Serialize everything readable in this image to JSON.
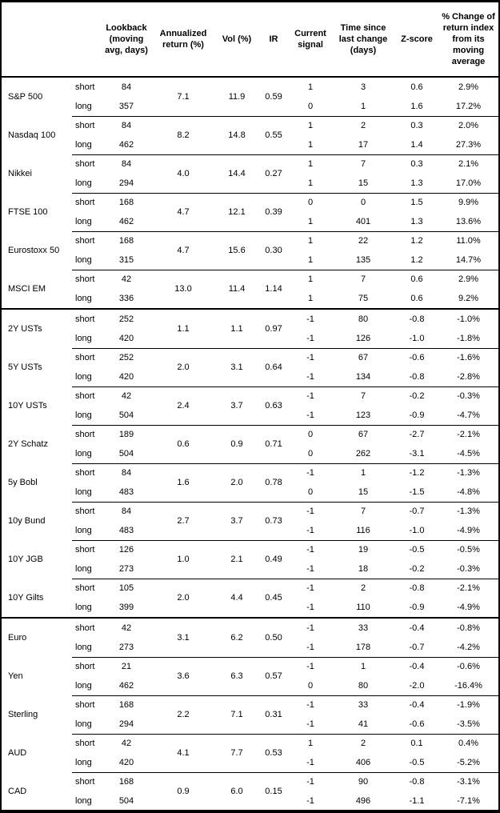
{
  "header": {
    "asset": "",
    "leg": "",
    "lookback": "Lookback (moving avg, days)",
    "ann_return": "Annualized return (%)",
    "vol": "Vol (%)",
    "ir": "IR",
    "signal": "Current signal",
    "time": "Time since last change (days)",
    "zscore": "Z-score",
    "pct_change": "% Change of return index from its moving average"
  },
  "colors": {
    "text": "#000000",
    "background": "#ffffff",
    "rule": "#000000"
  },
  "sections": [
    {
      "id": "equities",
      "assets": [
        {
          "name": "S&P 500",
          "ann_return": "7.1",
          "vol": "11.9",
          "ir": "0.59",
          "rows": [
            {
              "label": "short",
              "lookback": "84",
              "signal": "1",
              "time": "3",
              "zscore": "0.6",
              "pct_change": "2.9%"
            },
            {
              "label": "long",
              "lookback": "357",
              "signal": "0",
              "time": "1",
              "zscore": "1.6",
              "pct_change": "17.2%"
            }
          ]
        },
        {
          "name": "Nasdaq 100",
          "ann_return": "8.2",
          "vol": "14.8",
          "ir": "0.55",
          "rows": [
            {
              "label": "short",
              "lookback": "84",
              "signal": "1",
              "time": "2",
              "zscore": "0.3",
              "pct_change": "2.0%"
            },
            {
              "label": "long",
              "lookback": "462",
              "signal": "1",
              "time": "17",
              "zscore": "1.4",
              "pct_change": "27.3%"
            }
          ]
        },
        {
          "name": "Nikkei",
          "ann_return": "4.0",
          "vol": "14.4",
          "ir": "0.27",
          "rows": [
            {
              "label": "short",
              "lookback": "84",
              "signal": "1",
              "time": "7",
              "zscore": "0.3",
              "pct_change": "2.1%"
            },
            {
              "label": "long",
              "lookback": "294",
              "signal": "1",
              "time": "15",
              "zscore": "1.3",
              "pct_change": "17.0%"
            }
          ]
        },
        {
          "name": "FTSE 100",
          "ann_return": "4.7",
          "vol": "12.1",
          "ir": "0.39",
          "rows": [
            {
              "label": "short",
              "lookback": "168",
              "signal": "0",
              "time": "0",
              "zscore": "1.5",
              "pct_change": "9.9%"
            },
            {
              "label": "long",
              "lookback": "462",
              "signal": "1",
              "time": "401",
              "zscore": "1.3",
              "pct_change": "13.6%"
            }
          ]
        },
        {
          "name": "Eurostoxx 50",
          "ann_return": "4.7",
          "vol": "15.6",
          "ir": "0.30",
          "rows": [
            {
              "label": "short",
              "lookback": "168",
              "signal": "1",
              "time": "22",
              "zscore": "1.2",
              "pct_change": "11.0%"
            },
            {
              "label": "long",
              "lookback": "315",
              "signal": "1",
              "time": "135",
              "zscore": "1.2",
              "pct_change": "14.7%"
            }
          ]
        },
        {
          "name": "MSCI EM",
          "ann_return": "13.0",
          "vol": "11.4",
          "ir": "1.14",
          "rows": [
            {
              "label": "short",
              "lookback": "42",
              "signal": "1",
              "time": "7",
              "zscore": "0.6",
              "pct_change": "2.9%"
            },
            {
              "label": "long",
              "lookback": "336",
              "signal": "1",
              "time": "75",
              "zscore": "0.6",
              "pct_change": "9.2%"
            }
          ]
        }
      ]
    },
    {
      "id": "bonds",
      "assets": [
        {
          "name": "2Y USTs",
          "ann_return": "1.1",
          "vol": "1.1",
          "ir": "0.97",
          "rows": [
            {
              "label": "short",
              "lookback": "252",
              "signal": "-1",
              "time": "80",
              "zscore": "-0.8",
              "pct_change": "-1.0%"
            },
            {
              "label": "long",
              "lookback": "420",
              "signal": "-1",
              "time": "126",
              "zscore": "-1.0",
              "pct_change": "-1.8%"
            }
          ]
        },
        {
          "name": "5Y USTs",
          "ann_return": "2.0",
          "vol": "3.1",
          "ir": "0.64",
          "rows": [
            {
              "label": "short",
              "lookback": "252",
              "signal": "-1",
              "time": "67",
              "zscore": "-0.6",
              "pct_change": "-1.6%"
            },
            {
              "label": "long",
              "lookback": "420",
              "signal": "-1",
              "time": "134",
              "zscore": "-0.8",
              "pct_change": "-2.8%"
            }
          ]
        },
        {
          "name": "10Y USTs",
          "ann_return": "2.4",
          "vol": "3.7",
          "ir": "0.63",
          "rows": [
            {
              "label": "short",
              "lookback": "42",
              "signal": "-1",
              "time": "7",
              "zscore": "-0.2",
              "pct_change": "-0.3%"
            },
            {
              "label": "long",
              "lookback": "504",
              "signal": "-1",
              "time": "123",
              "zscore": "-0.9",
              "pct_change": "-4.7%"
            }
          ]
        },
        {
          "name": "2Y Schatz",
          "ann_return": "0.6",
          "vol": "0.9",
          "ir": "0.71",
          "rows": [
            {
              "label": "short",
              "lookback": "189",
              "signal": "0",
              "time": "67",
              "zscore": "-2.7",
              "pct_change": "-2.1%"
            },
            {
              "label": "long",
              "lookback": "504",
              "signal": "0",
              "time": "262",
              "zscore": "-3.1",
              "pct_change": "-4.5%"
            }
          ]
        },
        {
          "name": "5y Bobl",
          "ann_return": "1.6",
          "vol": "2.0",
          "ir": "0.78",
          "rows": [
            {
              "label": "short",
              "lookback": "84",
              "signal": "-1",
              "time": "1",
              "zscore": "-1.2",
              "pct_change": "-1.3%"
            },
            {
              "label": "long",
              "lookback": "483",
              "signal": "0",
              "time": "15",
              "zscore": "-1.5",
              "pct_change": "-4.8%"
            }
          ]
        },
        {
          "name": "10y Bund",
          "ann_return": "2.7",
          "vol": "3.7",
          "ir": "0.73",
          "rows": [
            {
              "label": "short",
              "lookback": "84",
              "signal": "-1",
              "time": "7",
              "zscore": "-0.7",
              "pct_change": "-1.3%"
            },
            {
              "label": "long",
              "lookback": "483",
              "signal": "-1",
              "time": "116",
              "zscore": "-1.0",
              "pct_change": "-4.9%"
            }
          ]
        },
        {
          "name": "10Y JGB",
          "ann_return": "1.0",
          "vol": "2.1",
          "ir": "0.49",
          "rows": [
            {
              "label": "short",
              "lookback": "126",
              "signal": "-1",
              "time": "19",
              "zscore": "-0.5",
              "pct_change": "-0.5%"
            },
            {
              "label": "long",
              "lookback": "273",
              "signal": "-1",
              "time": "18",
              "zscore": "-0.2",
              "pct_change": "-0.3%"
            }
          ]
        },
        {
          "name": "10Y Gilts",
          "ann_return": "2.0",
          "vol": "4.4",
          "ir": "0.45",
          "rows": [
            {
              "label": "short",
              "lookback": "105",
              "signal": "-1",
              "time": "2",
              "zscore": "-0.8",
              "pct_change": "-2.1%"
            },
            {
              "label": "long",
              "lookback": "399",
              "signal": "-1",
              "time": "110",
              "zscore": "-0.9",
              "pct_change": "-4.9%"
            }
          ]
        }
      ]
    },
    {
      "id": "fx",
      "assets": [
        {
          "name": "Euro",
          "ann_return": "3.1",
          "vol": "6.2",
          "ir": "0.50",
          "rows": [
            {
              "label": "short",
              "lookback": "42",
              "signal": "-1",
              "time": "33",
              "zscore": "-0.4",
              "pct_change": "-0.8%"
            },
            {
              "label": "long",
              "lookback": "273",
              "signal": "-1",
              "time": "178",
              "zscore": "-0.7",
              "pct_change": "-4.2%"
            }
          ]
        },
        {
          "name": "Yen",
          "ann_return": "3.6",
          "vol": "6.3",
          "ir": "0.57",
          "rows": [
            {
              "label": "short",
              "lookback": "21",
              "signal": "-1",
              "time": "1",
              "zscore": "-0.4",
              "pct_change": "-0.6%"
            },
            {
              "label": "long",
              "lookback": "462",
              "signal": "0",
              "time": "80",
              "zscore": "-2.0",
              "pct_change": "-16.4%"
            }
          ]
        },
        {
          "name": "Sterling",
          "ann_return": "2.2",
          "vol": "7.1",
          "ir": "0.31",
          "rows": [
            {
              "label": "short",
              "lookback": "168",
              "signal": "-1",
              "time": "33",
              "zscore": "-0.4",
              "pct_change": "-1.9%"
            },
            {
              "label": "long",
              "lookback": "294",
              "signal": "-1",
              "time": "41",
              "zscore": "-0.6",
              "pct_change": "-3.5%"
            }
          ]
        },
        {
          "name": "AUD",
          "ann_return": "4.1",
          "vol": "7.7",
          "ir": "0.53",
          "rows": [
            {
              "label": "short",
              "lookback": "42",
              "signal": "1",
              "time": "2",
              "zscore": "0.1",
              "pct_change": "0.4%"
            },
            {
              "label": "long",
              "lookback": "420",
              "signal": "-1",
              "time": "406",
              "zscore": "-0.5",
              "pct_change": "-5.2%"
            }
          ]
        },
        {
          "name": "CAD",
          "ann_return": "0.9",
          "vol": "6.0",
          "ir": "0.15",
          "rows": [
            {
              "label": "short",
              "lookback": "168",
              "signal": "-1",
              "time": "90",
              "zscore": "-0.8",
              "pct_change": "-3.1%"
            },
            {
              "label": "long",
              "lookback": "504",
              "signal": "-1",
              "time": "496",
              "zscore": "-1.1",
              "pct_change": "-7.1%"
            }
          ]
        }
      ]
    }
  ]
}
